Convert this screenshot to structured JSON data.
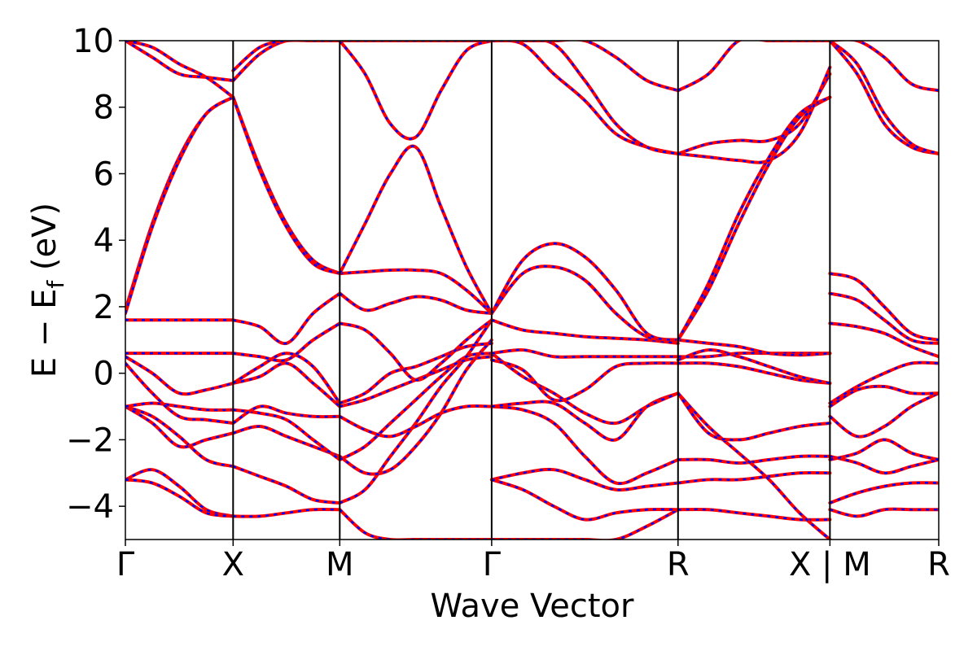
{
  "chart_data": {
    "type": "line",
    "xlabel": "Wave Vector",
    "ylabel_parts": {
      "main": "E − E",
      "subscript": "f",
      "tail": " (eV)"
    },
    "ylim": [
      -5,
      10
    ],
    "yticks": [
      {
        "value": 10,
        "label": "10"
      },
      {
        "value": 8,
        "label": "8"
      },
      {
        "value": 6,
        "label": "6"
      },
      {
        "value": 4,
        "label": "4"
      },
      {
        "value": 2,
        "label": "2"
      },
      {
        "value": 0,
        "label": "0"
      },
      {
        "value": -2,
        "label": "−2"
      },
      {
        "value": -4,
        "label": "−4"
      }
    ],
    "xlim": [
      0,
      7.55
    ],
    "kpoints": [
      {
        "x": 0,
        "label": "Γ"
      },
      {
        "x": 1.0,
        "label": "X"
      },
      {
        "x": 1.99,
        "label": "M"
      },
      {
        "x": 3.4,
        "label": "Γ"
      },
      {
        "x": 5.13,
        "label": "R"
      },
      {
        "x": 6.54,
        "label": "X | M"
      },
      {
        "x": 7.55,
        "label": "R"
      }
    ],
    "series_colors": {
      "solid": "#ff0000",
      "dashed": "#0000ff"
    },
    "segments": [
      {
        "from": "Γ",
        "to": "X",
        "x0": 0,
        "x1": 1.0,
        "bands": [
          [
            -3.2,
            -2.9,
            -3.4,
            -4.1,
            -4.3
          ],
          [
            -3.2,
            -3.3,
            -3.7,
            -4.2,
            -4.3
          ],
          [
            -1.0,
            -1.3,
            -1.9,
            -2.6,
            -2.8
          ],
          [
            -1.0,
            -1.5,
            -2.2,
            -2.0,
            -1.8
          ],
          [
            -1.0,
            -0.9,
            -1.0,
            -1.1,
            -1.1
          ],
          [
            0.3,
            -0.6,
            -1.3,
            -1.4,
            -1.5
          ],
          [
            0.5,
            0.0,
            -0.6,
            -0.5,
            -0.3
          ],
          [
            0.6,
            0.6,
            0.6,
            0.6,
            0.6
          ],
          [
            1.6,
            1.6,
            1.6,
            1.6,
            1.6
          ],
          [
            1.9,
            4.5,
            6.5,
            7.8,
            8.3
          ],
          [
            1.8,
            4.4,
            6.4,
            7.8,
            8.3
          ],
          [
            10.0,
            9.5,
            9.0,
            8.9,
            8.8
          ],
          [
            10.0,
            9.8,
            9.3,
            8.9,
            8.3
          ]
        ]
      },
      {
        "from": "X",
        "to": "M",
        "x0": 1.0,
        "x1": 1.99,
        "bands": [
          [
            -4.3,
            -4.3,
            -4.2,
            -4.1,
            -4.1
          ],
          [
            -2.8,
            -3.1,
            -3.4,
            -3.8,
            -3.9
          ],
          [
            -1.8,
            -1.6,
            -1.9,
            -2.2,
            -2.5
          ],
          [
            -1.1,
            -1.2,
            -1.4,
            -2.0,
            -2.6
          ],
          [
            -1.5,
            -1.0,
            -1.2,
            -1.3,
            -1.3
          ],
          [
            -0.3,
            -0.1,
            0.3,
            -0.3,
            -1.0
          ],
          [
            -0.3,
            0.2,
            0.6,
            0.2,
            -0.9
          ],
          [
            0.6,
            0.5,
            0.4,
            1.0,
            1.5
          ],
          [
            1.6,
            1.4,
            0.9,
            1.8,
            2.4
          ],
          [
            8.3,
            6.2,
            4.5,
            3.4,
            3.0
          ],
          [
            8.3,
            6.1,
            4.4,
            3.3,
            3.0
          ],
          [
            8.8,
            9.6,
            10.0,
            10.0,
            10.0
          ],
          [
            9.1,
            9.8,
            10.0,
            10.0,
            10.0
          ]
        ]
      },
      {
        "from": "M",
        "to": "Γ",
        "x0": 1.99,
        "x1": 3.4,
        "bands": [
          [
            -4.1,
            -4.8,
            -5.0,
            -5.0,
            -5.0,
            -5.0,
            -5.0
          ],
          [
            -3.9,
            -3.5,
            -2.5,
            -1.5,
            -0.4,
            0.5,
            1.6
          ],
          [
            -2.5,
            -3.0,
            -2.9,
            -2.2,
            -1.2,
            0.1,
            1.0
          ],
          [
            -2.6,
            -2.2,
            -1.5,
            -0.8,
            -0.1,
            0.5,
            0.6
          ],
          [
            -1.3,
            -1.7,
            -1.9,
            -1.6,
            -1.2,
            -1.0,
            -1.0
          ],
          [
            -1.0,
            -0.8,
            -0.5,
            -0.2,
            0.1,
            0.4,
            0.5
          ],
          [
            -0.9,
            -0.6,
            0.0,
            0.2,
            0.5,
            0.8,
            0.9
          ],
          [
            1.5,
            1.3,
            0.6,
            -0.2,
            0.3,
            1.0,
            1.6
          ],
          [
            2.4,
            1.9,
            2.1,
            2.3,
            2.2,
            1.9,
            1.8
          ],
          [
            3.0,
            3.05,
            3.1,
            3.1,
            3.0,
            2.5,
            1.8
          ],
          [
            3.0,
            4.5,
            6.0,
            6.8,
            5.0,
            3.2,
            1.8
          ],
          [
            10.0,
            9.0,
            7.5,
            7.1,
            8.5,
            9.7,
            10.0
          ],
          [
            10.0,
            10.0,
            10.0,
            10.0,
            10.0,
            10.0,
            10.0
          ]
        ]
      },
      {
        "from": "Γ",
        "to": "R",
        "x0": 3.4,
        "x1": 5.13,
        "bands": [
          [
            -5.0,
            -5.0,
            -5.0,
            -5.0,
            -5.0,
            -4.6,
            -4.1
          ],
          [
            -3.2,
            -3.0,
            -2.9,
            -3.2,
            -3.5,
            -3.4,
            -3.3
          ],
          [
            -3.2,
            -3.5,
            -4.0,
            -4.4,
            -4.2,
            -4.1,
            -4.1
          ],
          [
            -1.0,
            -1.1,
            -1.5,
            -2.5,
            -3.3,
            -3.0,
            -2.6
          ],
          [
            -1.0,
            -0.9,
            -0.9,
            -1.5,
            -2.0,
            -1.0,
            -0.6
          ],
          [
            0.6,
            -0.1,
            -0.6,
            -1.2,
            -1.5,
            -1.0,
            -0.6
          ],
          [
            0.4,
            0.1,
            -0.8,
            -0.5,
            0.2,
            0.3,
            0.3
          ],
          [
            0.6,
            0.7,
            0.5,
            0.5,
            0.5,
            0.5,
            0.5
          ],
          [
            1.6,
            1.3,
            1.2,
            1.1,
            1.05,
            1.0,
            0.9
          ],
          [
            1.8,
            3.0,
            3.2,
            2.8,
            1.8,
            1.1,
            1.0
          ],
          [
            1.8,
            3.4,
            3.9,
            3.5,
            2.5,
            1.2,
            1.0
          ],
          [
            10.0,
            9.9,
            9.0,
            8.2,
            7.2,
            6.8,
            6.6
          ],
          [
            10.0,
            10.0,
            9.9,
            8.8,
            7.5,
            6.8,
            6.6
          ],
          [
            10.0,
            10.0,
            10.0,
            10.0,
            9.5,
            8.8,
            8.5
          ]
        ]
      },
      {
        "from": "R",
        "to": "X",
        "x0": 5.13,
        "x1": 6.54,
        "bands": [
          [
            -4.1,
            -4.1,
            -4.2,
            -4.3,
            -4.4,
            -4.4
          ],
          [
            -3.3,
            -3.2,
            -3.2,
            -3.1,
            -3.0,
            -3.0
          ],
          [
            -2.6,
            -2.6,
            -2.7,
            -2.6,
            -2.5,
            -2.5
          ],
          [
            -0.6,
            -1.6,
            -2.4,
            -3.2,
            -4.2,
            -5.0
          ],
          [
            -0.6,
            -1.8,
            -2.0,
            -1.8,
            -1.6,
            -1.5
          ],
          [
            0.3,
            0.3,
            0.2,
            0.0,
            -0.2,
            -0.3
          ],
          [
            0.4,
            0.7,
            0.5,
            0.2,
            -0.1,
            -0.3
          ],
          [
            0.5,
            0.5,
            0.6,
            0.6,
            0.6,
            0.6
          ],
          [
            1.0,
            0.9,
            0.8,
            0.6,
            0.55,
            0.6
          ],
          [
            1.0,
            2.5,
            4.5,
            6.3,
            7.7,
            8.3
          ],
          [
            1.0,
            2.7,
            4.8,
            6.5,
            7.8,
            8.3
          ],
          [
            6.6,
            6.9,
            7.0,
            7.0,
            7.5,
            9.0
          ],
          [
            6.6,
            6.5,
            6.4,
            6.4,
            7.2,
            9.2
          ],
          [
            8.5,
            9.0,
            10.0,
            10.0,
            10.0,
            10.0
          ]
        ]
      },
      {
        "from": "M",
        "to": "R",
        "x0": 6.54,
        "x1": 7.55,
        "bands": [
          [
            -4.1,
            -4.3,
            -4.1,
            -4.1,
            -4.1
          ],
          [
            -3.9,
            -3.6,
            -3.4,
            -3.3,
            -3.3
          ],
          [
            -2.5,
            -2.7,
            -3.0,
            -2.8,
            -2.6
          ],
          [
            -2.6,
            -2.4,
            -2.0,
            -2.4,
            -2.6
          ],
          [
            -1.3,
            -1.9,
            -1.6,
            -1.0,
            -0.6
          ],
          [
            -1.0,
            -0.5,
            -0.4,
            -0.6,
            -0.6
          ],
          [
            -0.9,
            -0.4,
            0.0,
            0.3,
            0.3
          ],
          [
            1.5,
            1.4,
            1.2,
            0.8,
            0.5
          ],
          [
            2.4,
            2.2,
            1.6,
            1.0,
            0.9
          ],
          [
            3.0,
            2.8,
            2.0,
            1.2,
            1.0
          ],
          [
            10.0,
            9.0,
            7.5,
            6.8,
            6.6
          ],
          [
            10.0,
            9.3,
            7.8,
            6.9,
            6.6
          ],
          [
            10.0,
            10.0,
            9.5,
            8.7,
            8.5
          ]
        ]
      }
    ]
  }
}
